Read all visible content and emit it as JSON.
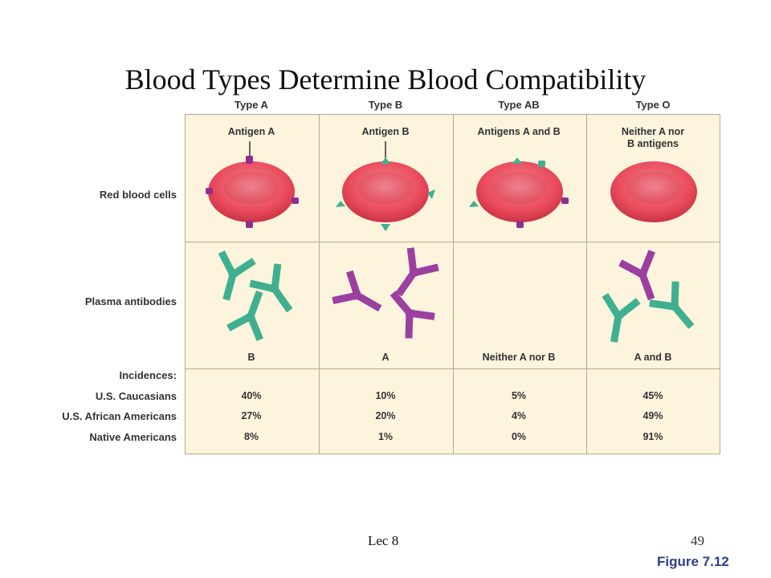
{
  "title": "Blood Types Determine Blood Compatibility",
  "columns": [
    {
      "header": "Type A",
      "antigen": "Antigen A",
      "antibody": "B",
      "antigen_color": "#8e2f8f",
      "antibody_color": "#3fb08f"
    },
    {
      "header": "Type B",
      "antigen": "Antigen B",
      "antibody": "A",
      "antigen_color": "#3fb08f",
      "antibody_color": "#9b3fa0"
    },
    {
      "header": "Type AB",
      "antigen": "Antigens A and B",
      "antibody": "Neither A nor B"
    },
    {
      "header": "Type O",
      "antigen_line1": "Neither A nor",
      "antigen_line2": "B antigens",
      "antibody": "A and B"
    }
  ],
  "rows": {
    "red_blood_cells": "Red blood cells",
    "plasma_antibodies": "Plasma antibodies",
    "incidences": "Incidences:"
  },
  "populations": [
    {
      "name": "U.S. Caucasians",
      "values": [
        "40%",
        "10%",
        "5%",
        "45%"
      ]
    },
    {
      "name": "U.S. African Americans",
      "values": [
        "27%",
        "20%",
        "4%",
        "49%"
      ]
    },
    {
      "name": "Native Americans",
      "values": [
        "8%",
        "1%",
        "0%",
        "91%"
      ]
    }
  ],
  "footer": {
    "lecture": "Lec 8",
    "page": "49",
    "figure": "Figure 7.12"
  },
  "colors": {
    "cell": "#e94a5c",
    "cell_highlight": "#f7a0a8",
    "grid_bg": "#fdf4dd",
    "antigen_a": "#8e2f8f",
    "antigen_b": "#3fb08f",
    "figure_label": "#2b3f8c"
  }
}
